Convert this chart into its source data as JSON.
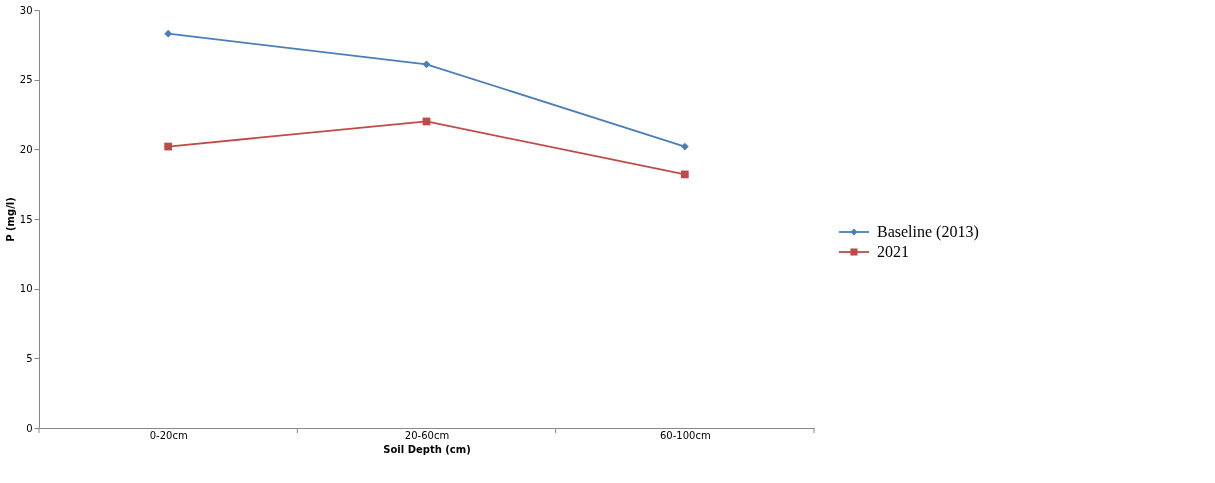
{
  "chart_data": {
    "type": "line",
    "xlabel": "Soil Depth (cm)",
    "ylabel": "P (mg/l)",
    "categories": [
      "0-20cm",
      "20-60cm",
      "60-100cm"
    ],
    "series": [
      {
        "name": "Baseline (2013)",
        "color": "#4a7ebb",
        "marker": "diamond",
        "values": [
          28.3,
          26.1,
          20.2
        ]
      },
      {
        "name": "2021",
        "color": "#be4b48",
        "marker": "square",
        "values": [
          20.2,
          22.0,
          18.2
        ]
      }
    ],
    "ylim": [
      0,
      30
    ],
    "yticks": [
      0,
      5,
      10,
      15,
      20,
      25,
      30
    ],
    "grid": false,
    "legend": "right",
    "line_style": "solid"
  }
}
